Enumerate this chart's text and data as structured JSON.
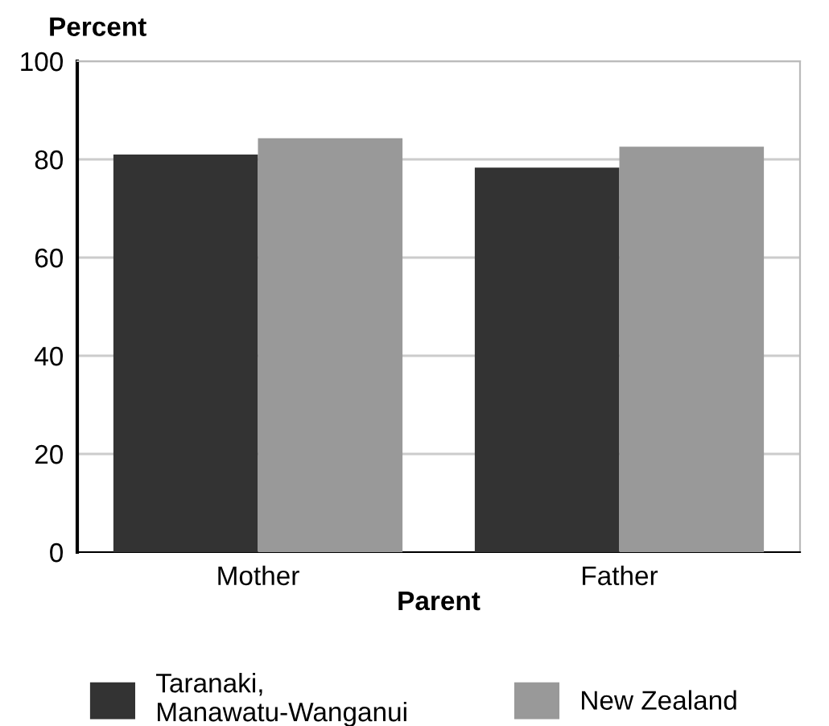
{
  "chart_data": {
    "type": "bar",
    "xlabel": "Parent",
    "ylabel": "Percent",
    "categories": [
      "Mother",
      "Father"
    ],
    "series": [
      {
        "name": "Taranaki,\nManawatu-Wanganui",
        "color": "#333333",
        "values": [
          81.0,
          78.3
        ]
      },
      {
        "name": "New Zealand",
        "color": "#999999",
        "values": [
          84.3,
          82.6
        ]
      }
    ],
    "ylim": [
      0,
      100
    ],
    "yticks": [
      0,
      20,
      40,
      60,
      80,
      100
    ],
    "grid": "y",
    "legend": "bottom"
  }
}
